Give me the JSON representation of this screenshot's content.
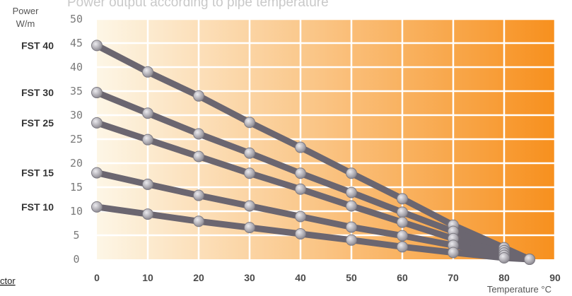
{
  "chart_data": {
    "type": "line",
    "title": "Power output according to pipe temperature",
    "ylabel": [
      "Power",
      "W/m"
    ],
    "xlabel": "Temperature °C",
    "xlim": [
      0,
      90
    ],
    "ylim": [
      0,
      50
    ],
    "x_ticks": [
      0,
      10,
      20,
      30,
      40,
      50,
      60,
      70,
      80,
      90
    ],
    "y_ticks": [
      0,
      5,
      10,
      15,
      20,
      25,
      30,
      35,
      40,
      45,
      50
    ],
    "grid": true,
    "background_gradient": [
      "#fdf6e6",
      "#f7901e"
    ],
    "line_color": "#6b6670",
    "marker_color": "#a8a6ad",
    "series": [
      {
        "name": "FST 40",
        "x": [
          0,
          10,
          20,
          30,
          40,
          50,
          60,
          70,
          80,
          85
        ],
        "values": [
          44.5,
          39,
          34,
          28.5,
          23.3,
          17.9,
          12.6,
          7.1,
          2.4,
          0
        ]
      },
      {
        "name": "FST 30",
        "x": [
          0,
          10,
          20,
          30,
          40,
          50,
          60,
          70,
          80,
          85
        ],
        "values": [
          34.7,
          30.4,
          26.1,
          22.1,
          17.9,
          13.9,
          9.8,
          5.8,
          1.8,
          0
        ]
      },
      {
        "name": "FST 25",
        "x": [
          0,
          10,
          20,
          30,
          40,
          50,
          60,
          70,
          80,
          85
        ],
        "values": [
          28.4,
          24.9,
          21.4,
          17.9,
          14.6,
          11.1,
          7.7,
          4.3,
          1.3,
          0
        ]
      },
      {
        "name": "FST 15",
        "x": [
          0,
          10,
          20,
          30,
          40,
          50,
          60,
          70,
          80,
          85
        ],
        "values": [
          18,
          15.6,
          13.3,
          11.1,
          8.9,
          6.7,
          4.9,
          2.9,
          0.8,
          0
        ]
      },
      {
        "name": "FST 10",
        "x": [
          0,
          10,
          20,
          30,
          40,
          50,
          60,
          70,
          80,
          85
        ],
        "values": [
          10.9,
          9.4,
          7.9,
          6.6,
          5.3,
          4,
          2.6,
          1.4,
          0.3,
          0
        ]
      }
    ]
  },
  "corner_text": "ctor"
}
